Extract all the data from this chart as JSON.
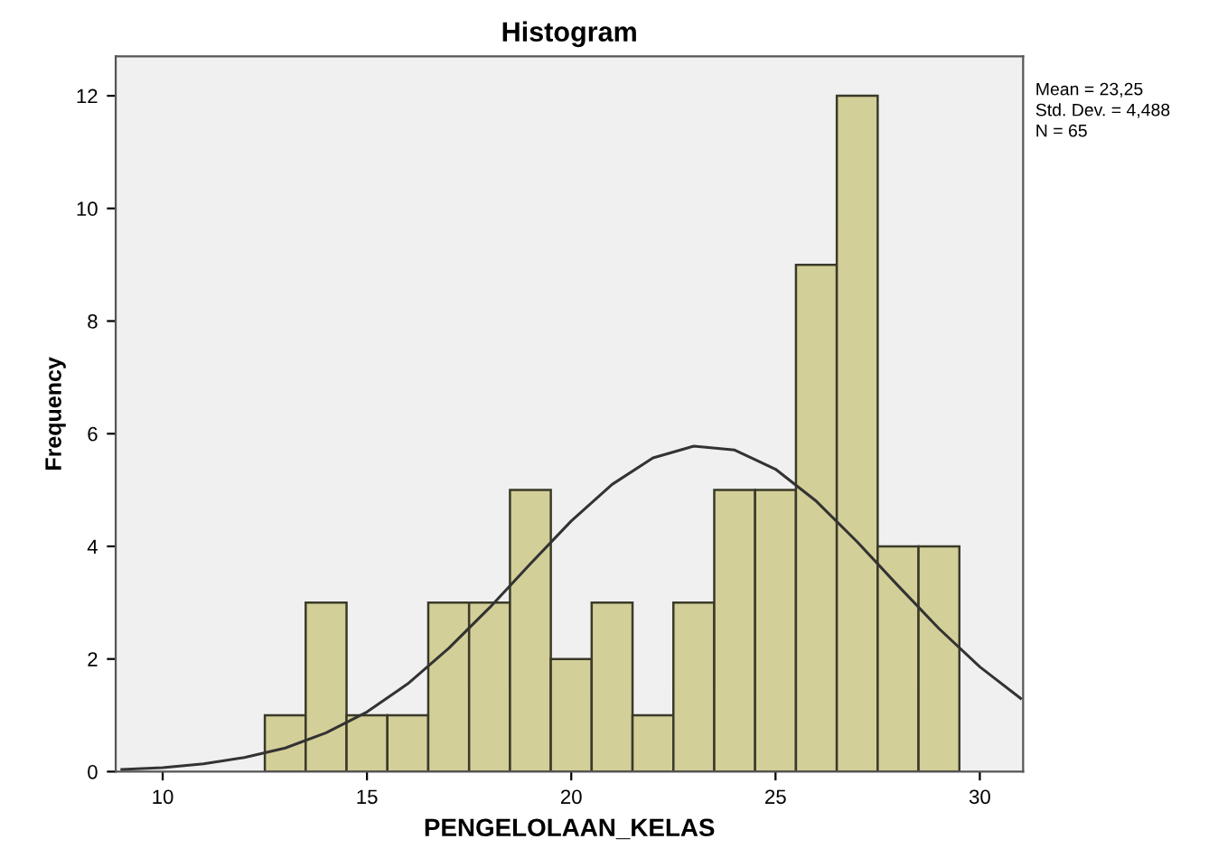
{
  "chart_data": {
    "type": "histogram",
    "title": "Histogram",
    "xlabel": "PENGELOLAAN_KELAS",
    "ylabel": "Frequency",
    "bins": [
      12.5,
      13.5,
      14.5,
      15.5,
      16.5,
      17.5,
      18.5,
      19.5,
      20.5,
      21.5,
      22.5,
      23.5,
      24.5,
      25.5,
      26.5,
      27.5,
      28.5,
      29.5
    ],
    "values": [
      1,
      3,
      1,
      1,
      3,
      3,
      5,
      2,
      3,
      1,
      3,
      5,
      5,
      9,
      12,
      4,
      4
    ],
    "color": "#d3cf98",
    "series": [
      {
        "type": "line",
        "color": "#333333",
        "x": [
          9,
          10,
          11,
          12,
          13,
          14,
          15,
          16,
          17,
          18,
          19,
          20,
          21,
          22,
          23,
          24,
          25,
          26,
          27,
          28,
          29,
          30,
          31
        ],
        "values": [
          0.04,
          0.07,
          0.14,
          0.25,
          0.42,
          0.69,
          1.06,
          1.56,
          2.19,
          2.91,
          3.69,
          4.45,
          5.1,
          5.57,
          5.78,
          5.71,
          5.37,
          4.8,
          4.08,
          3.3,
          2.54,
          1.86,
          1.3
        ]
      }
    ],
    "xlim": [
      8.85,
      31.06
    ],
    "xticks": [
      10,
      15,
      20,
      25,
      30
    ],
    "ylim": [
      0,
      12.7
    ],
    "yticks": [
      0,
      2,
      4,
      6,
      8,
      10,
      12
    ],
    "grid": false,
    "legend": false,
    "annotations": [
      "Mean = 23,25",
      "Std. Dev. = 4,488",
      "N = 65"
    ]
  }
}
